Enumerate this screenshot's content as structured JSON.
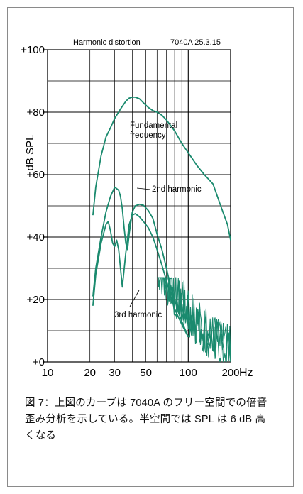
{
  "chart_data": {
    "type": "line",
    "header_left": "Harmonic distortion",
    "header_right": "7040A 25.3.15",
    "ylabel": "dB SPL",
    "xunit": "Hz",
    "xscale": "log",
    "xlim": [
      10,
      200
    ],
    "ylim": [
      0,
      100
    ],
    "y_ticks": [
      0,
      20,
      40,
      60,
      80,
      100
    ],
    "y_tick_labels": [
      "+0",
      "+20",
      "+40",
      "+60",
      "+80",
      "+100"
    ],
    "x_ticks": [
      10,
      20,
      30,
      50,
      100,
      200
    ],
    "x_tick_labels": [
      "10",
      "20",
      "30",
      "50",
      "100",
      "200"
    ],
    "grid": true,
    "line_color": "#1a8a6e",
    "annotations": {
      "fundamental_line1": "Fundamental",
      "fundamental_line2": "frequency",
      "second": "2nd harmonic",
      "third": "3rd harmonic"
    },
    "series": [
      {
        "name": "Fundamental frequency",
        "x": [
          21,
          22,
          24,
          26,
          28,
          30,
          33,
          36,
          38,
          40,
          42,
          45,
          48,
          52,
          56,
          60,
          65,
          70,
          80,
          90,
          100,
          115,
          130,
          150,
          170,
          190,
          200
        ],
        "y": [
          47,
          56,
          66,
          72,
          75,
          78,
          81,
          83.5,
          84.5,
          84.8,
          84.8,
          84.3,
          83,
          81.5,
          80.5,
          80,
          79,
          77.5,
          74,
          70,
          67,
          63,
          60,
          57,
          50,
          44,
          39
        ]
      },
      {
        "name": "2nd harmonic",
        "x": [
          21,
          22,
          24,
          26,
          28,
          30,
          32,
          33,
          34,
          35,
          36,
          37,
          38,
          40,
          42,
          45,
          48,
          52,
          56,
          60,
          65,
          70,
          75,
          80,
          85,
          90,
          100
        ],
        "y": [
          21,
          30,
          40,
          48,
          53,
          56,
          55,
          53,
          49,
          43,
          38,
          36,
          41,
          48,
          50,
          50.5,
          50.2,
          48.5,
          46,
          41,
          36,
          30,
          24,
          20,
          16,
          13,
          8
        ]
      },
      {
        "name": "3rd harmonic",
        "x": [
          21,
          22,
          24,
          26,
          27,
          28,
          29,
          30,
          31,
          32,
          33,
          34,
          36,
          38,
          40,
          42,
          45,
          48,
          52,
          56,
          60,
          65,
          70,
          75,
          80,
          90,
          100
        ],
        "y": [
          18,
          28,
          38,
          44,
          45,
          42,
          38,
          37,
          39,
          36,
          30,
          24,
          35,
          44,
          47,
          47.5,
          46.5,
          45,
          43,
          40,
          36,
          31,
          26,
          21,
          17,
          12,
          8
        ]
      }
    ],
    "noise_floor": {
      "x_start": 60,
      "x_end": 200,
      "y_min": 0,
      "y_max": 27
    }
  },
  "caption": "図 7：上図のカーブは 7040A のフリー空間での倍音歪み分析を示している。半空間では SPL は 6 dB 高くなる"
}
